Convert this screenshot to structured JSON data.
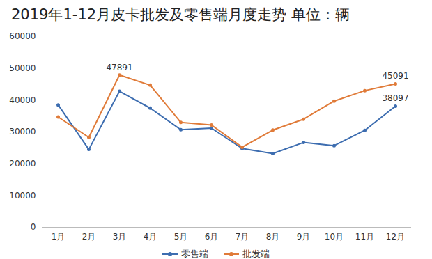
{
  "chart_data": {
    "type": "line",
    "title": "2019年1-12月皮卡批发及零售端月度走势 单位：辆",
    "categories": [
      "1月",
      "2月",
      "3月",
      "4月",
      "5月",
      "6月",
      "7月",
      "8月",
      "9月",
      "10月",
      "11月",
      "12月"
    ],
    "series": [
      {
        "name": "零售端",
        "color": "#3d6db0",
        "marker": "circle",
        "values": [
          38500,
          24500,
          42800,
          37500,
          30700,
          31200,
          24800,
          23200,
          26700,
          25700,
          30500,
          38097
        ],
        "value_labels": [
          null,
          null,
          null,
          null,
          null,
          null,
          null,
          null,
          null,
          null,
          null,
          "38097"
        ]
      },
      {
        "name": "批发端",
        "color": "#e07b39",
        "marker": "circle",
        "values": [
          34700,
          28300,
          47891,
          44700,
          33000,
          32200,
          25200,
          30600,
          34000,
          39700,
          43000,
          45091
        ],
        "value_labels": [
          null,
          null,
          "47891",
          null,
          null,
          null,
          null,
          null,
          null,
          null,
          null,
          "45091"
        ]
      }
    ],
    "ylim": [
      0,
      60000
    ],
    "yticks": [
      0,
      10000,
      20000,
      30000,
      40000,
      50000,
      60000
    ],
    "grid": false,
    "legend": "bottom"
  }
}
